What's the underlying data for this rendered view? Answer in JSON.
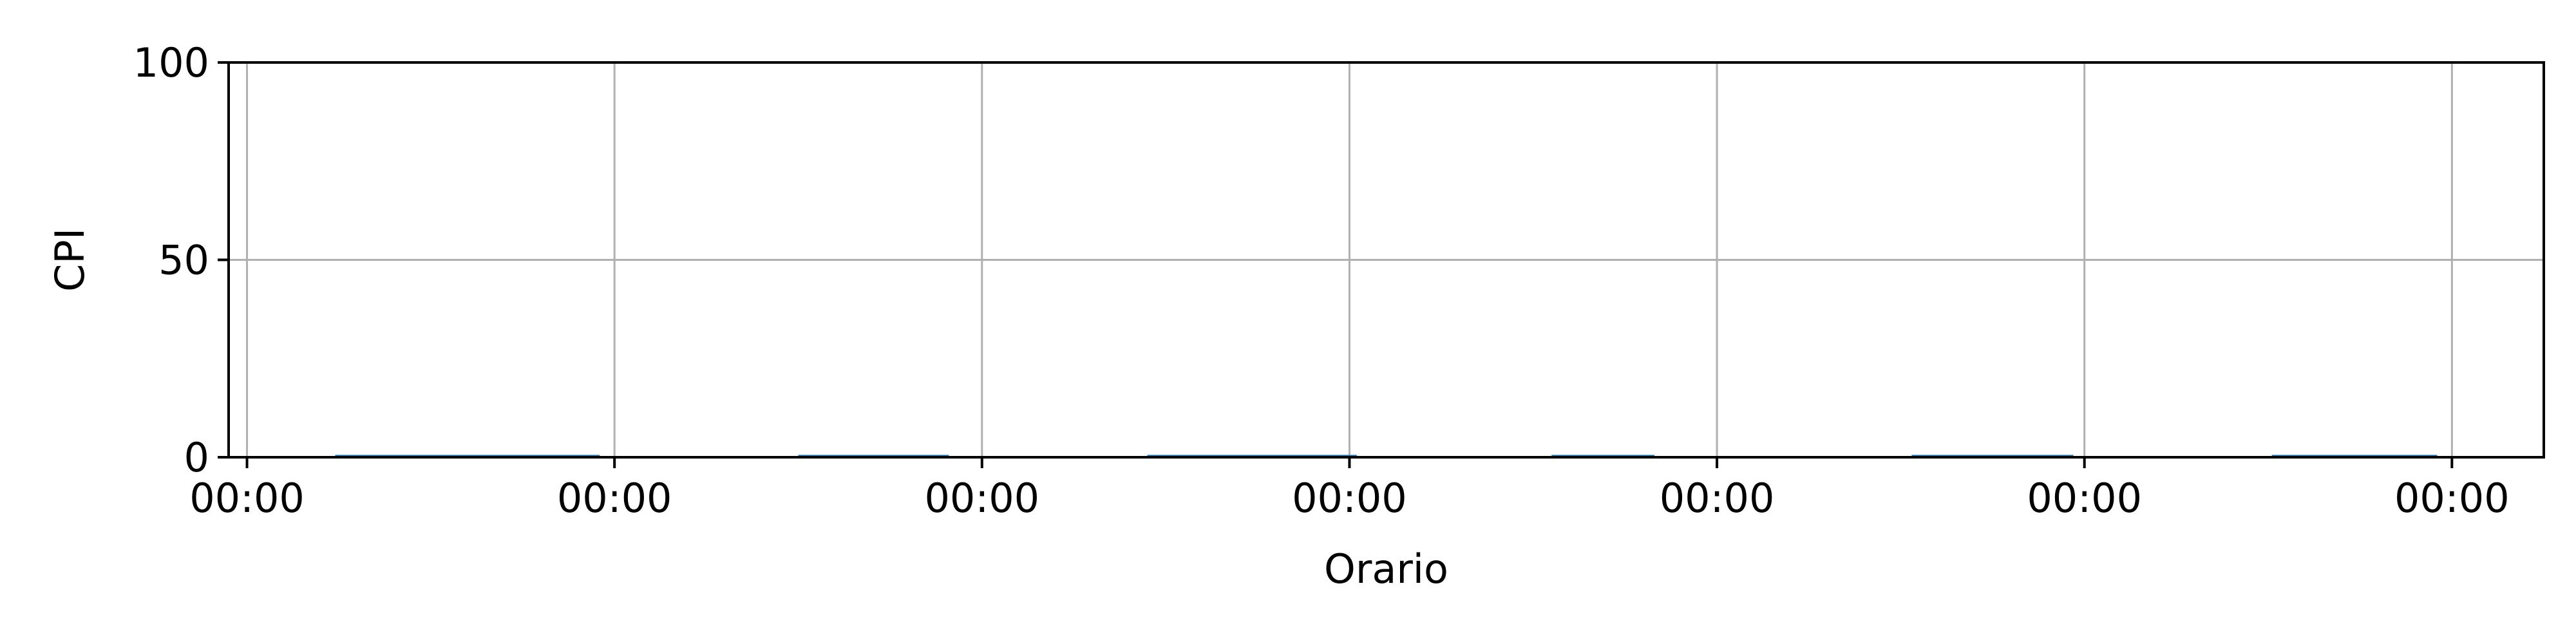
{
  "chart_data": {
    "type": "bar",
    "xlabel": "Orario",
    "ylabel": "CPI",
    "ylim": [
      0,
      100
    ],
    "yticks": [
      0,
      50,
      100
    ],
    "xticks": [
      "00:00",
      "00:00",
      "00:00",
      "00:00",
      "00:00",
      "00:00",
      "00:00"
    ],
    "grid": true,
    "legend": "none",
    "series": [
      {
        "segments": [
          {
            "start": 0.24,
            "end": 0.96,
            "value": 0.6
          },
          {
            "start": 1.5,
            "end": 1.91,
            "value": 0.6
          },
          {
            "start": 2.45,
            "end": 3.02,
            "value": 0.6
          },
          {
            "start": 3.55,
            "end": 3.83,
            "value": 0.6
          },
          {
            "start": 4.53,
            "end": 4.97,
            "value": 0.6
          },
          {
            "start": 5.51,
            "end": 5.96,
            "value": 0.6
          }
        ]
      }
    ],
    "colors": {
      "bar": "#1f77b4",
      "grid": "#b0b0b0",
      "axis": "#000000"
    }
  }
}
